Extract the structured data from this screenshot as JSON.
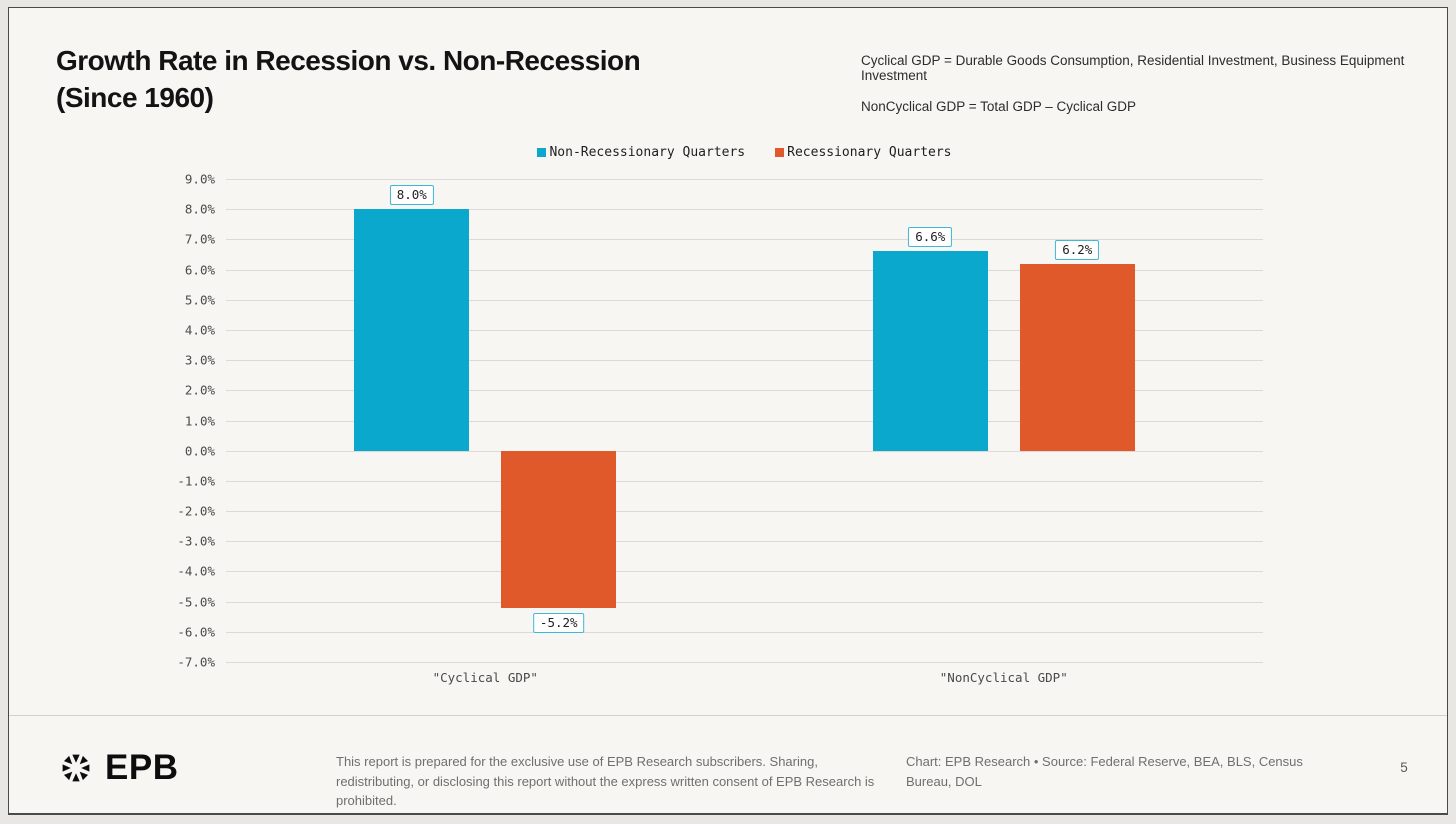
{
  "header": {
    "title_line1": "Growth Rate in Recession vs. Non-Recession",
    "title_line2": "(Since 1960)",
    "note_line1": "Cyclical GDP = Durable Goods Consumption, Residential Investment, Business Equipment Investment",
    "note_line2": "NonCyclical GDP = Total GDP – Cyclical GDP"
  },
  "chart_data": {
    "type": "bar",
    "categories": [
      "\"Cyclical GDP\"",
      "\"NonCyclical GDP\""
    ],
    "series": [
      {
        "name": "Non-Recessionary Quarters",
        "color": "#09A8CC",
        "values": [
          8.0,
          6.6
        ],
        "labels": [
          "8.0%",
          "6.6%"
        ]
      },
      {
        "name": "Recessionary Quarters",
        "color": "#E0592B",
        "values": [
          -5.2,
          6.2
        ],
        "labels": [
          "-5.2%",
          "6.2%"
        ]
      }
    ],
    "title": "Growth Rate in Recession vs. Non-Recession (Since 1960)",
    "xlabel": "",
    "ylabel": "",
    "ylim": [
      -7,
      9
    ],
    "ytick_step": 1,
    "ytick_suffix": "%",
    "grid": true,
    "legend_position": "top-center",
    "value_label_box_border": "#3fb8d8"
  },
  "footer": {
    "logo_text": "EPB",
    "disclaimer": "This report is prepared for the exclusive use of EPB Research subscribers. Sharing, redistributing, or disclosing this report without the express written consent of EPB Research is prohibited.",
    "source": "Chart: EPB Research  •  Source: Federal Reserve, BEA, BLS, Census Bureau, DOL",
    "page_number": "5"
  }
}
